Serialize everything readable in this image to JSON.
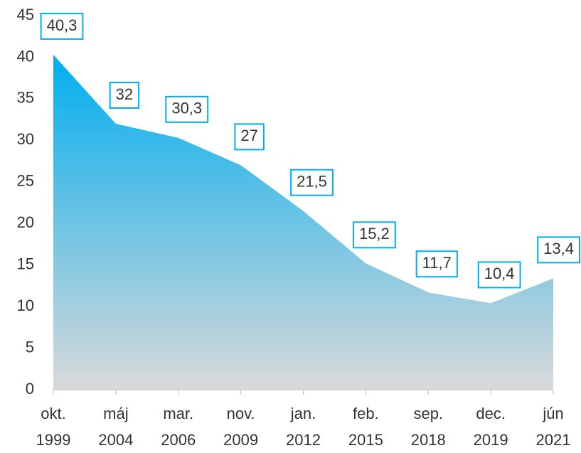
{
  "chart_data": {
    "type": "area",
    "categories": [
      [
        "okt.",
        "1999"
      ],
      [
        "máj",
        "2004"
      ],
      [
        "mar.",
        "2006"
      ],
      [
        "nov.",
        "2009"
      ],
      [
        "jan.",
        "2012"
      ],
      [
        "feb.",
        "2015"
      ],
      [
        "sep.",
        "2018"
      ],
      [
        "dec.",
        "2019"
      ],
      [
        "jún",
        "2021"
      ]
    ],
    "values": [
      40.3,
      32,
      30.3,
      27,
      21.5,
      15.2,
      11.7,
      10.4,
      13.4
    ],
    "value_labels": [
      "40,3",
      "32",
      "30,3",
      "27",
      "21,5",
      "15,2",
      "11,7",
      "10,4",
      "13,4"
    ],
    "color": "#00aeef",
    "color_bottom": "#d9d9d9",
    "label_border_color": "#00aeef",
    "ylim": [
      0,
      45
    ],
    "yticks": [
      0,
      5,
      10,
      15,
      20,
      25,
      30,
      35,
      40,
      45
    ]
  }
}
